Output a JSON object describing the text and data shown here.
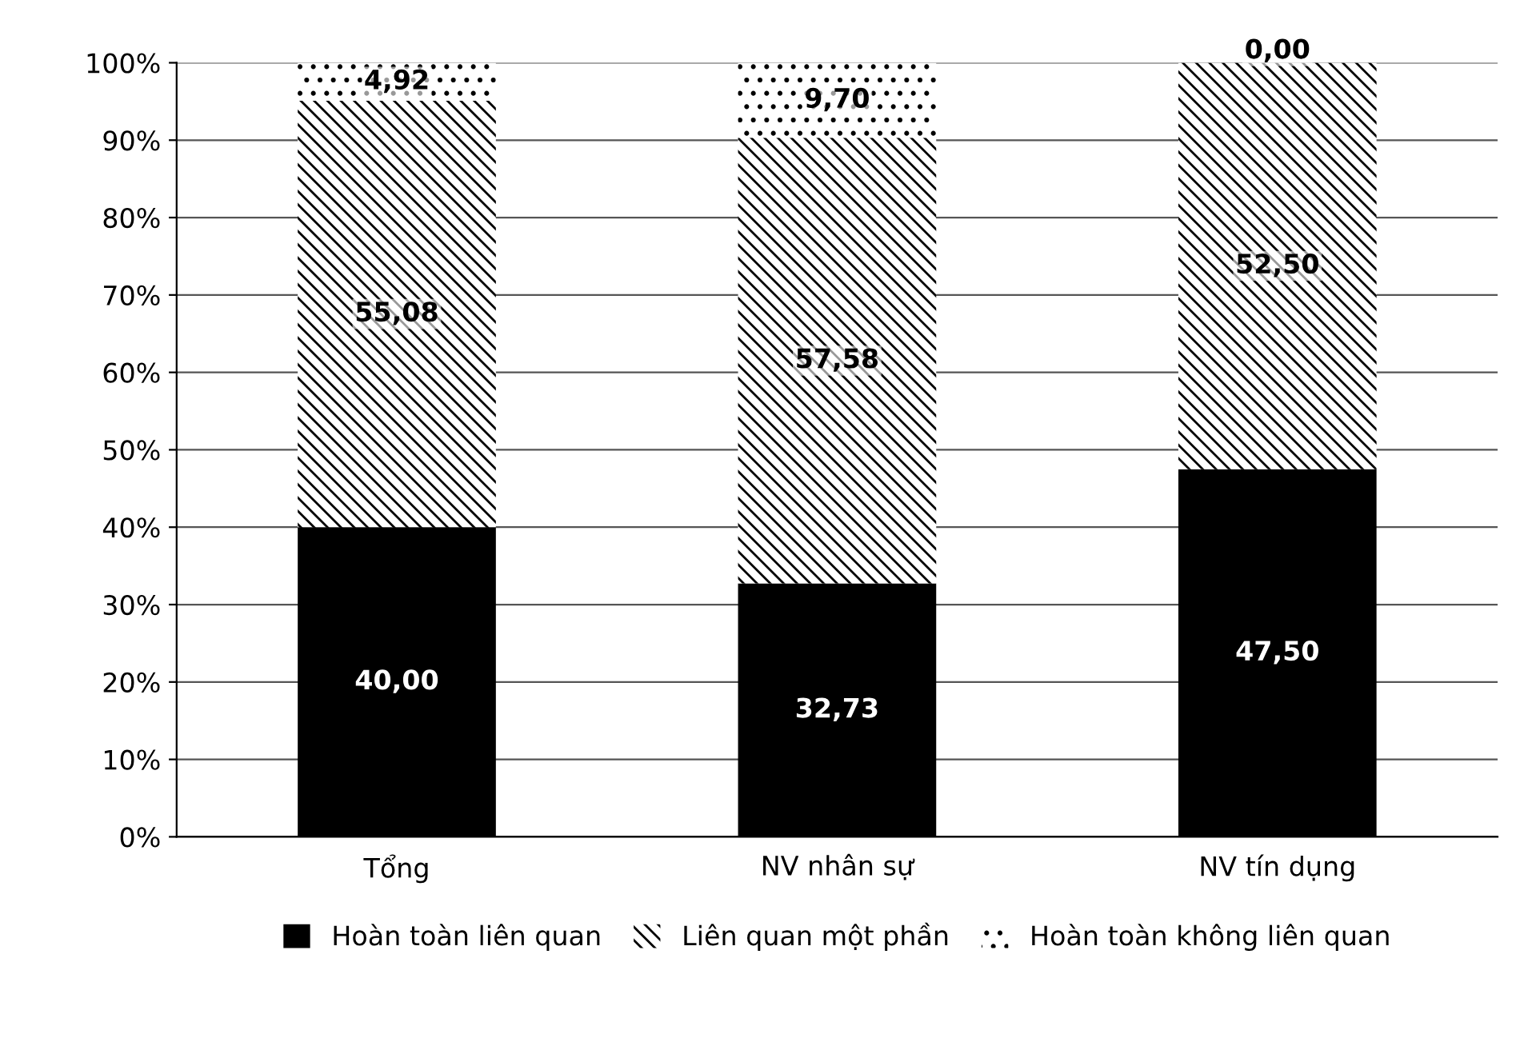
{
  "chart_data": {
    "type": "bar",
    "stacked": true,
    "categories": [
      "Tổng",
      "NV nhân sự",
      "NV tín dụng"
    ],
    "series": [
      {
        "name": "Hoàn toàn liên quan",
        "color": "#000000",
        "values": [
          40.0,
          32.73,
          47.5
        ],
        "value_labels": [
          "40,00",
          "32,73",
          "47,50"
        ]
      },
      {
        "name": "Liên quan một phần",
        "color": "#000000",
        "values": [
          55.08,
          57.58,
          52.5
        ],
        "value_labels": [
          "55,08",
          "57,58",
          "52,50"
        ]
      },
      {
        "name": "Hoàn toàn không liên quan",
        "color": "#000000",
        "values": [
          4.92,
          9.7,
          0.0
        ],
        "value_labels": [
          "4,92",
          "9,70",
          "0,00"
        ]
      }
    ],
    "ylim": [
      0,
      100
    ],
    "yticks": [
      {
        "value": 0,
        "label": "0%"
      },
      {
        "value": 10,
        "label": "10%"
      },
      {
        "value": 20,
        "label": "20%"
      },
      {
        "value": 30,
        "label": "30%"
      },
      {
        "value": 40,
        "label": "40%"
      },
      {
        "value": 50,
        "label": "50%"
      },
      {
        "value": 60,
        "label": "60%"
      },
      {
        "value": 70,
        "label": "70%"
      },
      {
        "value": 80,
        "label": "80%"
      },
      {
        "value": 90,
        "label": "90%"
      },
      {
        "value": 100,
        "label": "100%"
      }
    ],
    "grid": "y",
    "legend": "bottom"
  }
}
